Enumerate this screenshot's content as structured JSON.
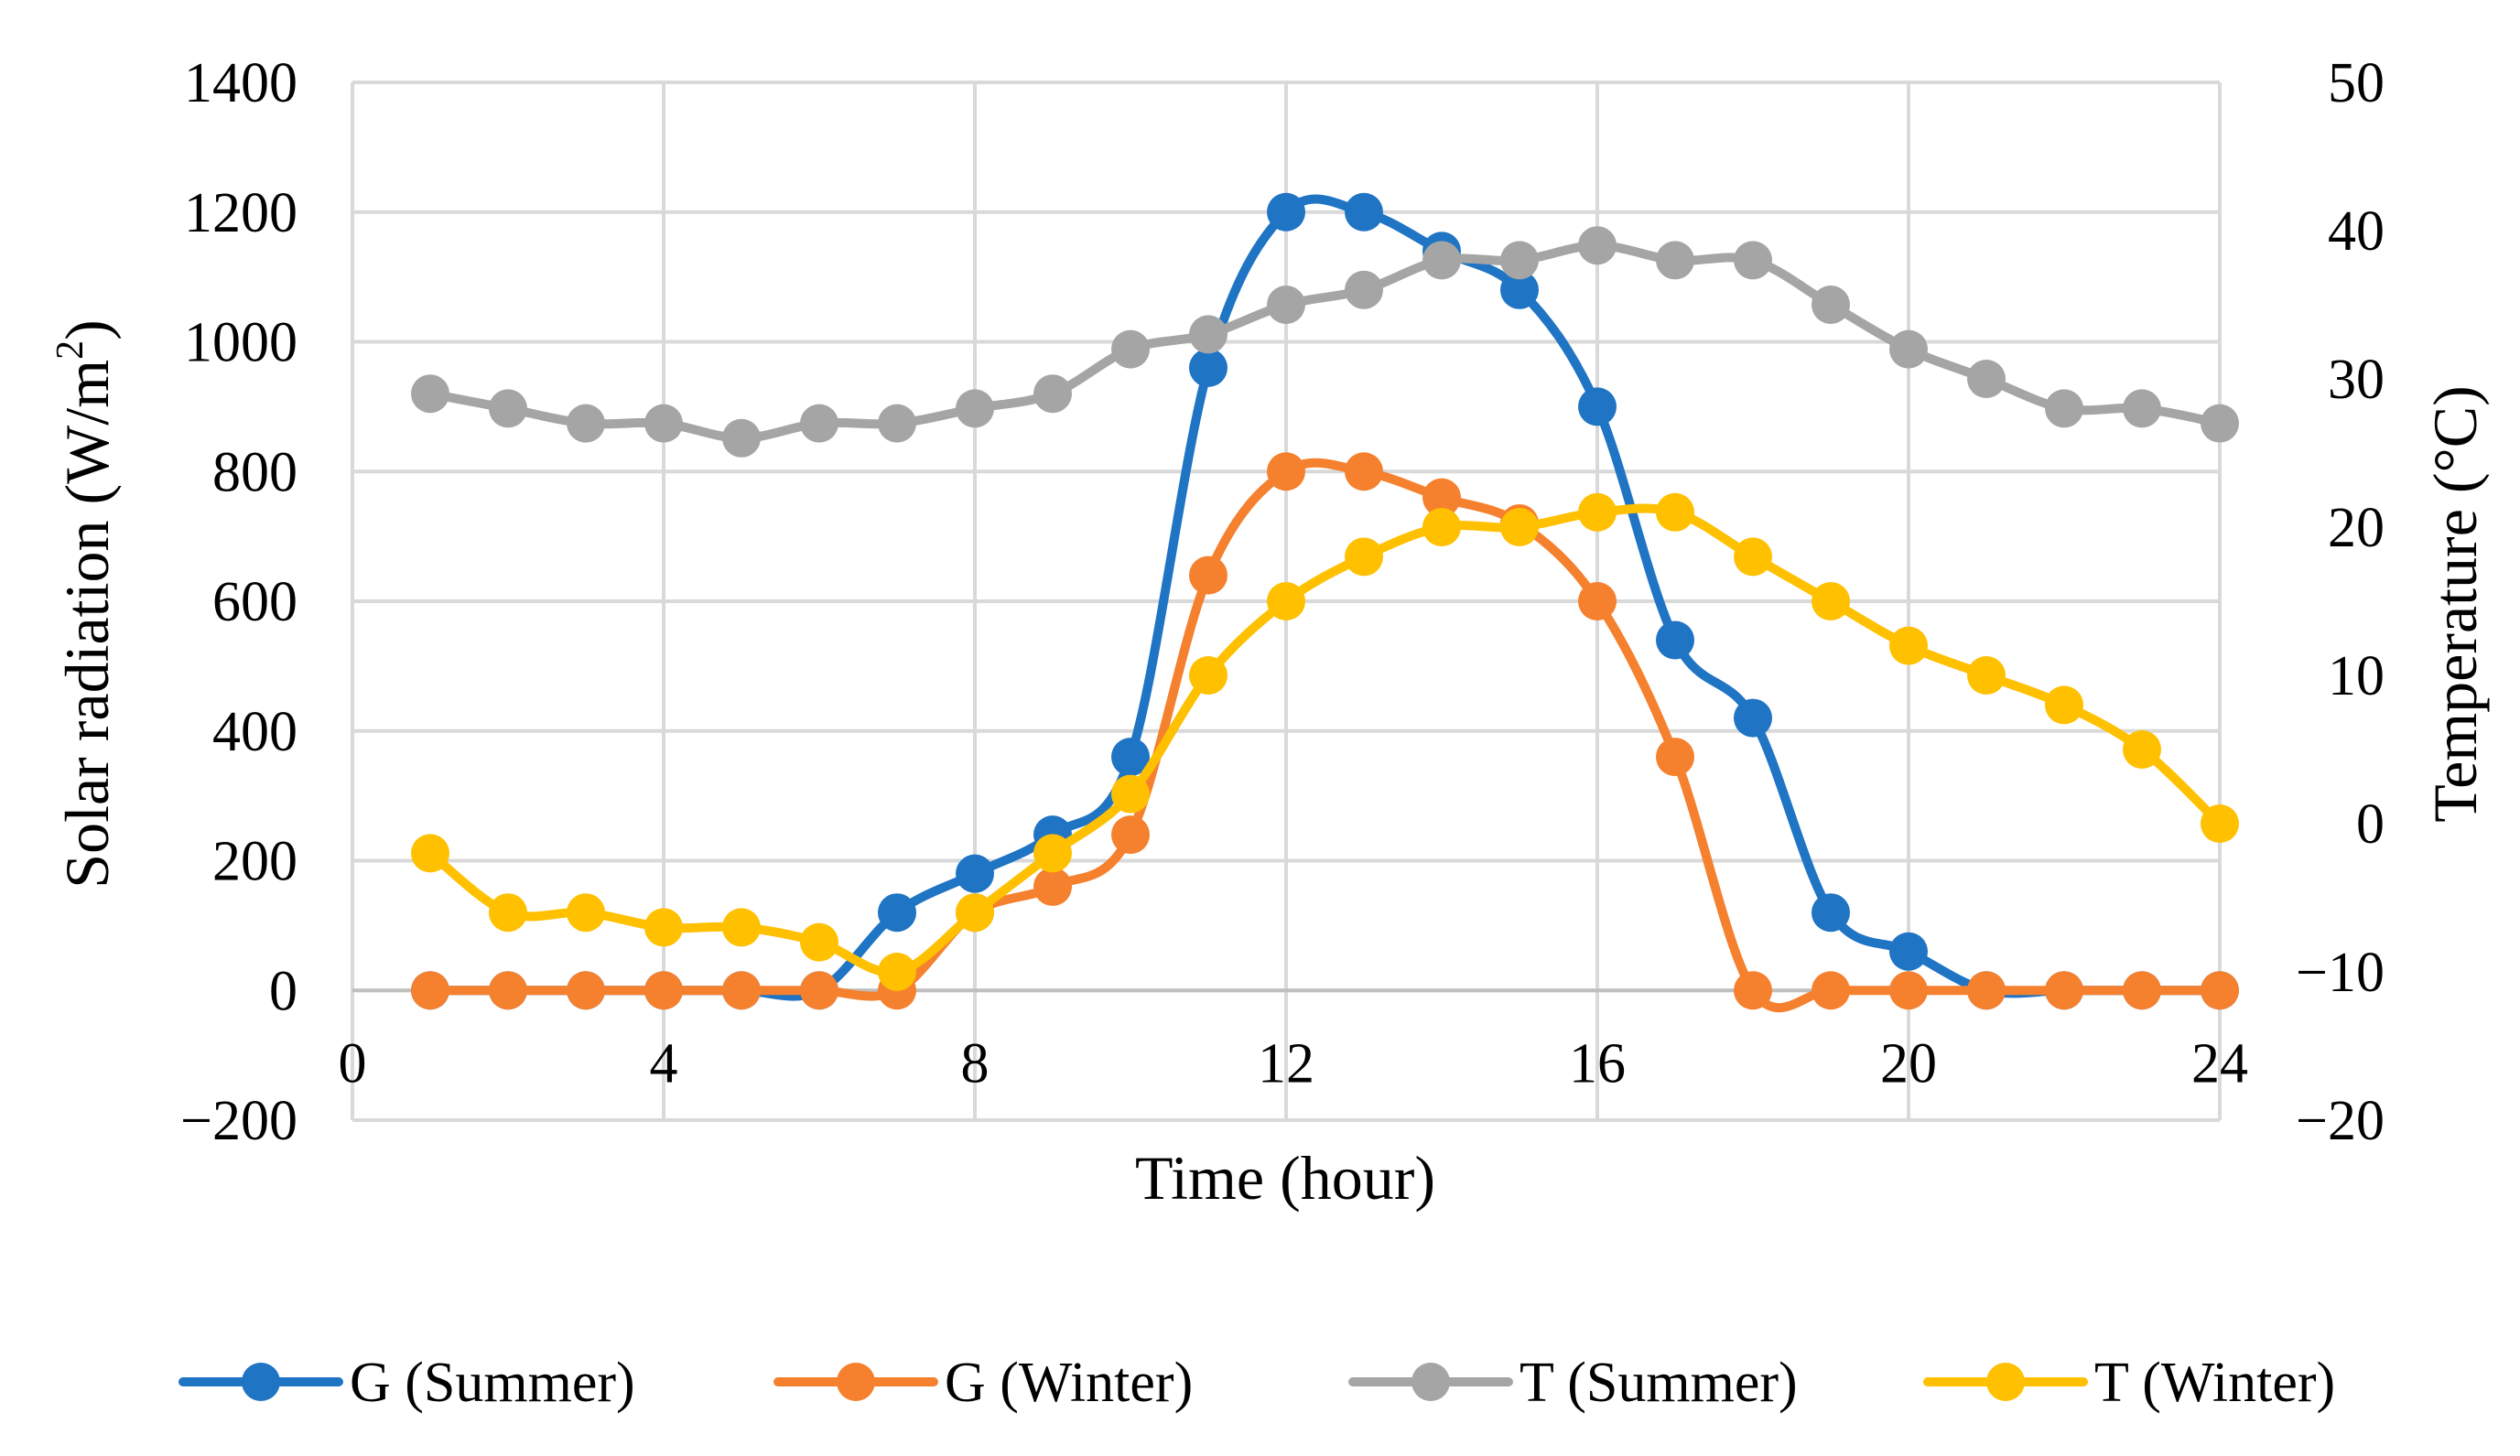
{
  "chart_data": {
    "type": "line",
    "title": "",
    "xlabel": "Time (hour)",
    "ylabel_left": "Solar radiation (W/m",
    "ylabel_left_superscript": "2",
    "ylabel_left_suffix": ")",
    "ylabel_right": "Temperature (°C)",
    "xlim": [
      0,
      24
    ],
    "ylim_left": [
      -200,
      1400
    ],
    "ylim_right": [
      -20,
      50
    ],
    "x_ticks": [
      0,
      4,
      8,
      12,
      16,
      20,
      24
    ],
    "y_left_ticks": [
      -200,
      0,
      200,
      400,
      600,
      800,
      1000,
      1200,
      1400
    ],
    "y_right_ticks": [
      -20,
      -10,
      0,
      10,
      20,
      30,
      40,
      50
    ],
    "x_tick_labels": [
      "0",
      "4",
      "8",
      "12",
      "16",
      "20",
      "24"
    ],
    "y_left_tick_labels": [
      "−200",
      "0",
      "200",
      "400",
      "600",
      "800",
      "1000",
      "1200",
      "1400"
    ],
    "y_right_tick_labels": [
      "−20",
      "−10",
      "0",
      "10",
      "20",
      "30",
      "40",
      "50"
    ],
    "grid": true,
    "legend_position": "bottom",
    "x": [
      1,
      2,
      3,
      4,
      5,
      6,
      7,
      8,
      9,
      10,
      11,
      12,
      13,
      14,
      15,
      16,
      17,
      18,
      19,
      20,
      21,
      22,
      23,
      24
    ],
    "series": [
      {
        "name": "G (Summer)",
        "axis": "left",
        "color": "#1f74c4",
        "values": [
          0,
          0,
          0,
          0,
          0,
          0,
          120,
          180,
          240,
          360,
          960,
          1200,
          1200,
          1140,
          1080,
          900,
          540,
          420,
          120,
          60,
          0,
          0,
          0,
          0
        ]
      },
      {
        "name": "G (Winter)",
        "axis": "left",
        "color": "#f5802e",
        "values": [
          0,
          0,
          0,
          0,
          0,
          0,
          0,
          120,
          160,
          240,
          640,
          800,
          800,
          760,
          720,
          600,
          360,
          0,
          0,
          0,
          0,
          0,
          0,
          0
        ]
      },
      {
        "name": "T (Summer)",
        "axis": "right",
        "color": "#a5a5a5",
        "values": [
          29,
          28,
          27,
          27,
          26,
          27,
          27,
          28,
          29,
          32,
          33,
          35,
          36,
          38,
          38,
          39,
          38,
          38,
          35,
          32,
          30,
          28,
          28,
          27
        ]
      },
      {
        "name": "T (Winter)",
        "axis": "right",
        "color": "#ffc000",
        "values": [
          -2,
          -6,
          -6,
          -7,
          -7,
          -8,
          -10,
          -6,
          -2,
          2,
          10,
          15,
          18,
          20,
          20,
          21,
          21,
          18,
          15,
          12,
          10,
          8,
          5,
          0
        ]
      }
    ]
  }
}
